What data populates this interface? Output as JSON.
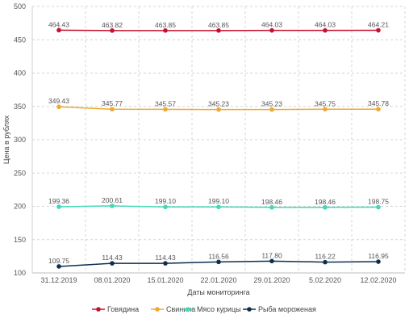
{
  "chart_data": {
    "type": "line",
    "xlabel": "Даты мониторинга",
    "ylabel": "Цена в рублях",
    "categories": [
      "31.12.2019",
      "08.01.2020",
      "15.01.2020",
      "22.01.2020",
      "29.01.2020",
      "5.02.2020",
      "12.02.2020"
    ],
    "ylim": [
      100,
      500
    ],
    "yticks": [
      100,
      150,
      200,
      250,
      300,
      350,
      400,
      450,
      500
    ],
    "grid": true,
    "legend_position": "bottom",
    "series": [
      {
        "name": "Говядина",
        "color": "#c8102e",
        "values": [
          464.43,
          463.82,
          463.85,
          463.85,
          464.03,
          464.03,
          464.21
        ],
        "labels": [
          "464.43",
          "463.82",
          "463.85",
          "463.85",
          "464.03",
          "464.03",
          "464.21"
        ]
      },
      {
        "name": "Свинина",
        "color": "#f0a830",
        "values": [
          349.43,
          345.77,
          345.57,
          345.23,
          345.23,
          345.75,
          345.78
        ],
        "labels": [
          "349.43",
          "345.77",
          "345.57",
          "345.23",
          "345.23",
          "345.75",
          "345.78"
        ]
      },
      {
        "name": "Мясо курицы",
        "color": "#40d8b8",
        "values": [
          199.36,
          200.61,
          199.1,
          199.1,
          198.46,
          198.46,
          198.75
        ],
        "labels": [
          "199.36",
          "200.61",
          "199.10",
          "199.10",
          "198.46",
          "198.46",
          "198.75"
        ]
      },
      {
        "name": "Рыба мороженая",
        "color": "#0d2f4f",
        "values": [
          109.75,
          114.43,
          114.43,
          116.56,
          117.8,
          116.22,
          116.95
        ],
        "labels": [
          "109.75",
          "114.43",
          "114.43",
          "116.56",
          "117.80",
          "116.22",
          "116.95"
        ]
      }
    ]
  }
}
